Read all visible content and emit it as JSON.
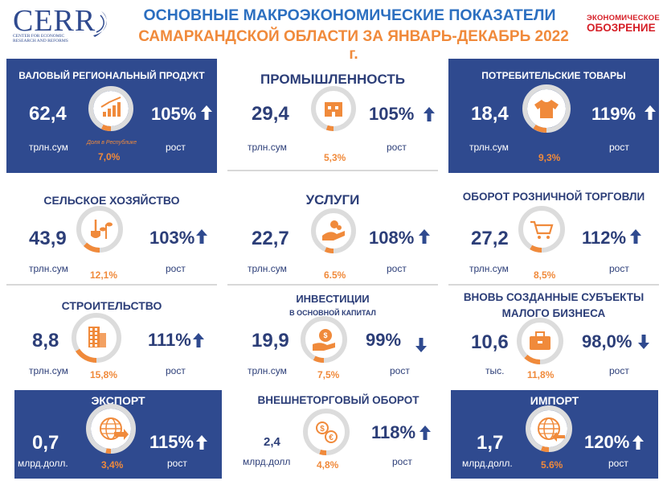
{
  "header": {
    "logo_text": "CERR",
    "logo_subtitle": "CENTER FOR ECONOMIC RESEARCH AND REFORMS",
    "title_line1": "ОСНОВНЫЕ МАКРОЭКОНОМИЧЕСКИЕ ПОКАЗАТЕЛИ",
    "title_line2": "САМАРКАНДСКОЙ ОБЛАСТИ ЗА ЯНВАРЬ-ДЕКАБРЬ 2022 г.",
    "brand_top": "ЭКОНОМИЧЕСКОЕ",
    "brand_bottom": "ОБОЗРЕНИЕ"
  },
  "colors": {
    "navy": "#2f4a8f",
    "orange": "#f08a3b",
    "title_blue": "#2c6fc0",
    "ring_gray": "#dcdcdc",
    "brand_red": "#d62028"
  },
  "cards": {
    "grp": {
      "title": "ВАЛОВЫЙ РЕГИОНАЛЬНЫЙ ПРОДУКТ",
      "value": "62,4",
      "unit": "трлн.сум",
      "pct": "105%",
      "growth": "рост",
      "share": "7,0%",
      "note": "Доля в Республике",
      "icon": "growth-chart-icon",
      "direction": "up",
      "share_fraction": 0.07
    },
    "industry": {
      "title": "ПРОМЫШЛЕННОСТЬ",
      "value": "29,4",
      "unit": "трлн.сум",
      "pct": "105%",
      "growth": "рост",
      "share": "5,3%",
      "icon": "factory-icon",
      "direction": "up",
      "share_fraction": 0.053
    },
    "consumer": {
      "title": "ПОТРЕБИТЕЛЬСКИЕ ТОВАРЫ",
      "value": "18,4",
      "unit": "трлн.сум",
      "pct": "119%",
      "growth": "рост",
      "share": "9,3%",
      "icon": "tshirt-icon",
      "direction": "up",
      "share_fraction": 0.093
    },
    "agri": {
      "title": "СЕЛЬСКОЕ ХОЗЯЙСТВО",
      "value": "43,9",
      "unit": "трлн.сум",
      "pct": "103%",
      "growth": "рост",
      "share": "12,1%",
      "icon": "shovel-plant-icon",
      "direction": "up",
      "share_fraction": 0.121
    },
    "services": {
      "title": "УСЛУГИ",
      "value": "22,7",
      "unit": "трлн.сум",
      "pct": "108%",
      "growth": "рост",
      "share": "6.5%",
      "icon": "hand-service-icon",
      "direction": "up",
      "share_fraction": 0.065
    },
    "retail": {
      "title": "ОБОРОТ РОЗНИЧНОЙ ТОРГОВЛИ",
      "value": "27,2",
      "unit": "трлн.сум",
      "pct": "112%",
      "growth": "рост",
      "share": "8,5%",
      "icon": "shopping-cart-icon",
      "direction": "up",
      "share_fraction": 0.085
    },
    "construction": {
      "title": "СТРОИТЕЛЬСТВО",
      "value": "8,8",
      "unit": "трлн.сум",
      "pct": "111%",
      "growth": "рост",
      "share": "15,8%",
      "icon": "building-icon",
      "direction": "up",
      "share_fraction": 0.158
    },
    "investment": {
      "title": "ИНВЕСТИЦИИ",
      "subtitle": "В ОСНОВНОЙ КАПИТАЛ",
      "value": "19,9",
      "unit": "трлн.сум",
      "pct": "99%",
      "growth": "рост",
      "share": "7,5%",
      "icon": "money-bag-hand-icon",
      "direction": "down",
      "share_fraction": 0.075
    },
    "smallbiz": {
      "title": "ВНОВЬ СОЗДАННЫЕ СУБЪЕКТЫ",
      "subtitle": "МАЛОГО БИЗНЕСА",
      "value": "10,6",
      "unit": "тыс.",
      "pct": "98,0%",
      "growth": "рост",
      "share": "11,8%",
      "icon": "briefcase-icon",
      "direction": "down",
      "share_fraction": 0.118
    },
    "export": {
      "title": "ЭКСПОРТ",
      "value": "0,7",
      "unit": "млрд.долл.",
      "pct": "115%",
      "growth": "рост",
      "share": "3,4%",
      "icon": "globe-export-icon",
      "direction": "up",
      "share_fraction": 0.034
    },
    "trade": {
      "title": "ВНЕШНЕТОРГОВЫЙ ОБОРОТ",
      "value": "2,4",
      "unit": "млрд.долл",
      "pct": "118%",
      "growth": "рост",
      "share": "4,8%",
      "icon": "currency-exchange-icon",
      "direction": "up",
      "share_fraction": 0.048
    },
    "import": {
      "title": "ИМПОРТ",
      "value": "1,7",
      "unit": "млрд.долл.",
      "pct": "120%",
      "growth": "рост",
      "share": "5.6%",
      "icon": "globe-import-icon",
      "direction": "up",
      "share_fraction": 0.056
    }
  }
}
